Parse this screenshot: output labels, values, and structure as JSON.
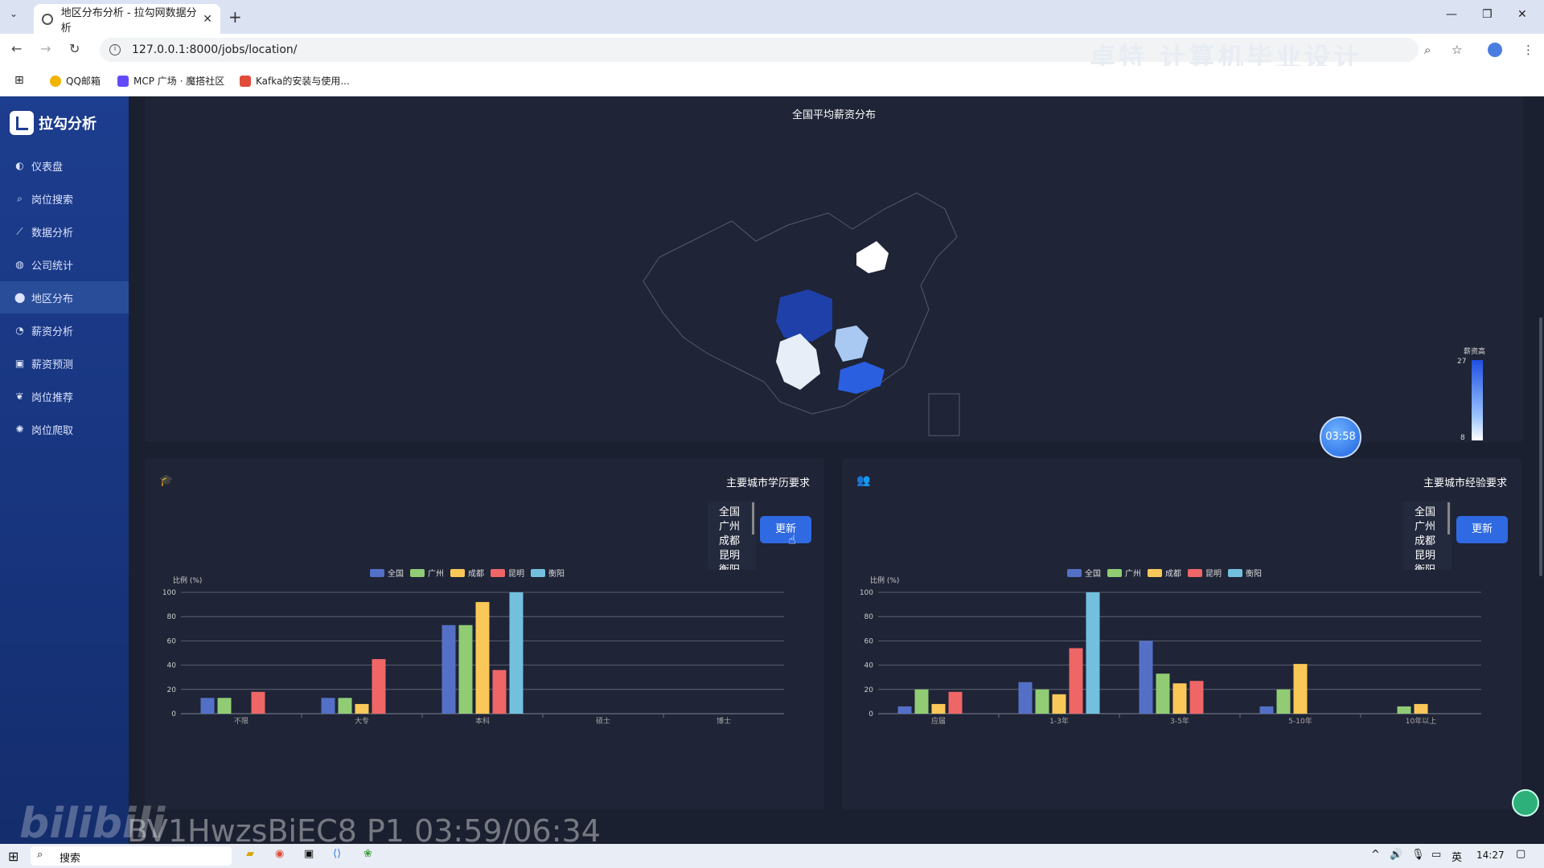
{
  "browser": {
    "tab_title": "地区分布分析 - 拉勾网数据分析",
    "url": "127.0.0.1:8000/jobs/location/",
    "overlay_text": "卓特 计算机毕业设计",
    "bookmarks": [
      {
        "label": "QQ邮箱",
        "color": "#f0b400"
      },
      {
        "label": "MCP 广场 · 魔搭社区",
        "color": "#624aff"
      },
      {
        "label": "Kafka的安装与使用...",
        "color": "#e04b3a"
      }
    ]
  },
  "app": {
    "name": "拉勾分析",
    "nav": [
      {
        "label": "仪表盘",
        "icon": "dashboard-icon",
        "glyph": "◐"
      },
      {
        "label": "岗位搜索",
        "icon": "search-icon",
        "glyph": "⌕"
      },
      {
        "label": "数据分析",
        "icon": "chart-line-icon",
        "glyph": "⟋"
      },
      {
        "label": "公司统计",
        "icon": "globe-icon",
        "glyph": "◍"
      },
      {
        "label": "地区分布",
        "icon": "map-pin-icon",
        "glyph": "⬤"
      },
      {
        "label": "薪资分析",
        "icon": "pie-icon",
        "glyph": "◔"
      },
      {
        "label": "薪资预测",
        "icon": "money-icon",
        "glyph": "▣"
      },
      {
        "label": "岗位推荐",
        "icon": "bulb-icon",
        "glyph": "❦"
      },
      {
        "label": "岗位爬取",
        "icon": "spider-icon",
        "glyph": "✺"
      }
    ],
    "active_index": 4
  },
  "map_panel": {
    "title": "全国平均薪资分布",
    "scale_title": "薪资高",
    "scale_max": "27",
    "scale_min": "8"
  },
  "timer": "03:58",
  "city_options": [
    "全国",
    "广州",
    "成都",
    "昆明",
    "衡阳"
  ],
  "update_label": "更新",
  "edu_panel": {
    "title": "主要城市学历要求",
    "ylabel": "比例 (%)"
  },
  "exp_panel": {
    "title": "主要城市经验要求",
    "ylabel": "比例 (%)"
  },
  "colors": {
    "全国": "#5470c6",
    "广州": "#91cc75",
    "成都": "#fac858",
    "昆明": "#ee6666",
    "衡阳": "#73c0de"
  },
  "chart_data": [
    {
      "type": "bar",
      "title": "主要城市学历要求",
      "ylabel": "比例 (%)",
      "ylim": [
        0,
        100
      ],
      "yticks": [
        0,
        20,
        40,
        60,
        80,
        100
      ],
      "grid": true,
      "legend": "top-center",
      "categories": [
        "不限",
        "大专",
        "本科",
        "硕士",
        "博士"
      ],
      "series": [
        {
          "name": "全国",
          "values": [
            13,
            13,
            73,
            0,
            0
          ]
        },
        {
          "name": "广州",
          "values": [
            13,
            13,
            73,
            0,
            0
          ]
        },
        {
          "name": "成都",
          "values": [
            0,
            8,
            92,
            0,
            0
          ]
        },
        {
          "name": "昆明",
          "values": [
            18,
            45,
            36,
            0,
            0
          ]
        },
        {
          "name": "衡阳",
          "values": [
            0,
            0,
            100,
            0,
            0
          ]
        }
      ]
    },
    {
      "type": "bar",
      "title": "主要城市经验要求",
      "ylabel": "比例 (%)",
      "ylim": [
        0,
        100
      ],
      "yticks": [
        0,
        20,
        40,
        60,
        80,
        100
      ],
      "grid": true,
      "legend": "top-center",
      "categories": [
        "应届",
        "1-3年",
        "3-5年",
        "5-10年",
        "10年以上"
      ],
      "series": [
        {
          "name": "全国",
          "values": [
            6,
            26,
            60,
            6,
            0
          ]
        },
        {
          "name": "广州",
          "values": [
            20,
            20,
            33,
            20,
            6
          ]
        },
        {
          "name": "成都",
          "values": [
            8,
            16,
            25,
            41,
            8
          ]
        },
        {
          "name": "昆明",
          "values": [
            18,
            54,
            27,
            0,
            0
          ]
        },
        {
          "name": "衡阳",
          "values": [
            0,
            100,
            0,
            0,
            0
          ]
        }
      ]
    }
  ],
  "watermark": {
    "logo": "bilibili",
    "caption": "BV1HwzsBiEC8 P1 03:59/06:34"
  },
  "taskbar": {
    "search_placeholder": "搜索",
    "ime": "英",
    "time": "14:27"
  }
}
